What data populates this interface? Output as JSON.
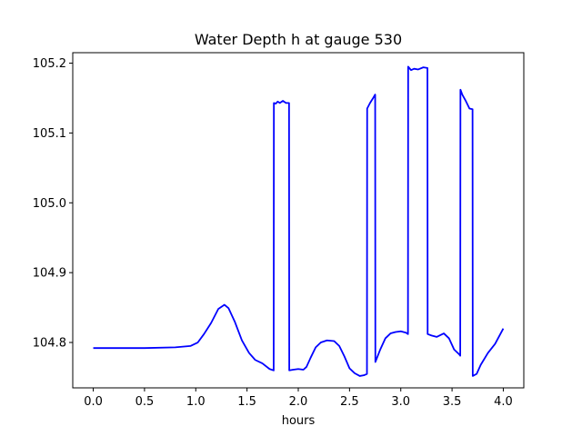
{
  "chart_data": {
    "type": "line",
    "title": "Water Depth h at gauge 530",
    "xlabel": "hours",
    "ylabel": "",
    "xlim": [
      -0.2,
      4.2
    ],
    "ylim": [
      104.735,
      105.215
    ],
    "xticks": [
      0.0,
      0.5,
      1.0,
      1.5,
      2.0,
      2.5,
      3.0,
      3.5,
      4.0
    ],
    "xtick_labels": [
      "0.0",
      "0.5",
      "1.0",
      "1.5",
      "2.0",
      "2.5",
      "3.0",
      "3.5",
      "4.0"
    ],
    "yticks": [
      104.8,
      104.9,
      105.0,
      105.1,
      105.2
    ],
    "ytick_labels": [
      "104.8",
      "104.9",
      "105.0",
      "105.1",
      "105.2"
    ],
    "grid": false,
    "series": [
      {
        "color": "#0000ff",
        "x": [
          0.0,
          0.5,
          0.8,
          0.95,
          1.02,
          1.08,
          1.15,
          1.22,
          1.28,
          1.32,
          1.38,
          1.45,
          1.52,
          1.58,
          1.65,
          1.72,
          1.76,
          1.762,
          1.78,
          1.8,
          1.82,
          1.85,
          1.88,
          1.91,
          1.912,
          1.95,
          2.0,
          2.05,
          2.08,
          2.12,
          2.17,
          2.22,
          2.28,
          2.35,
          2.4,
          2.45,
          2.5,
          2.55,
          2.6,
          2.64,
          2.67,
          2.672,
          2.7,
          2.73,
          2.75,
          2.752,
          2.8,
          2.85,
          2.9,
          2.95,
          3.0,
          3.05,
          3.07,
          3.072,
          3.1,
          3.13,
          3.17,
          3.22,
          3.26,
          3.262,
          3.3,
          3.35,
          3.42,
          3.47,
          3.52,
          3.57,
          3.58,
          3.582,
          3.6,
          3.63,
          3.67,
          3.7,
          3.702,
          3.74,
          3.78,
          3.85,
          3.92,
          4.0
        ],
        "y": [
          104.792,
          104.792,
          104.793,
          104.795,
          104.8,
          104.812,
          104.828,
          104.848,
          104.854,
          104.849,
          104.83,
          104.803,
          104.785,
          104.775,
          104.77,
          104.762,
          104.76,
          105.143,
          105.142,
          105.145,
          105.143,
          105.146,
          105.143,
          105.143,
          104.76,
          104.761,
          104.762,
          104.761,
          104.765,
          104.778,
          104.793,
          104.8,
          104.803,
          104.802,
          104.795,
          104.78,
          104.763,
          104.756,
          104.752,
          104.753,
          104.755,
          105.135,
          105.143,
          105.15,
          105.155,
          104.772,
          104.79,
          104.806,
          104.813,
          104.815,
          104.816,
          104.814,
          104.812,
          105.195,
          105.19,
          105.192,
          105.191,
          105.194,
          105.193,
          104.812,
          104.81,
          104.808,
          104.813,
          104.806,
          104.79,
          104.783,
          104.781,
          105.162,
          105.155,
          105.147,
          105.135,
          105.134,
          104.752,
          104.755,
          104.768,
          104.785,
          104.798,
          104.82
        ]
      }
    ]
  }
}
